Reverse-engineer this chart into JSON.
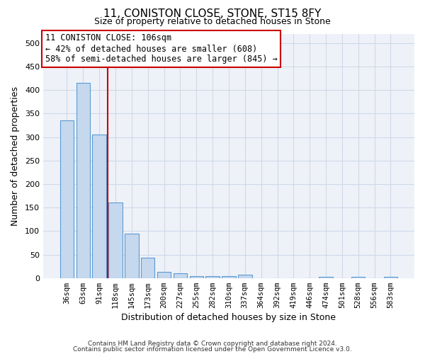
{
  "title": "11, CONISTON CLOSE, STONE, ST15 8FY",
  "subtitle": "Size of property relative to detached houses in Stone",
  "xlabel": "Distribution of detached houses by size in Stone",
  "ylabel": "Number of detached properties",
  "footnote1": "Contains HM Land Registry data © Crown copyright and database right 2024.",
  "footnote2": "Contains public sector information licensed under the Open Government Licence v3.0.",
  "annotation_line1": "11 CONISTON CLOSE: 106sqm",
  "annotation_line2": "← 42% of detached houses are smaller (608)",
  "annotation_line3": "58% of semi-detached houses are larger (845) →",
  "bar_color": "#c5d8ed",
  "bar_edge_color": "#5b9bd5",
  "vline_color": "#cc0000",
  "vline_x": 2.5,
  "annotation_box_color": "#cc0000",
  "categories": [
    "36sqm",
    "63sqm",
    "91sqm",
    "118sqm",
    "145sqm",
    "173sqm",
    "200sqm",
    "227sqm",
    "255sqm",
    "282sqm",
    "310sqm",
    "337sqm",
    "364sqm",
    "392sqm",
    "419sqm",
    "446sqm",
    "474sqm",
    "501sqm",
    "528sqm",
    "556sqm",
    "583sqm"
  ],
  "values": [
    335,
    415,
    305,
    160,
    95,
    43,
    13,
    10,
    4,
    4,
    4,
    7,
    0,
    0,
    0,
    0,
    3,
    0,
    3,
    0,
    3
  ],
  "ylim": [
    0,
    520
  ],
  "yticks": [
    0,
    50,
    100,
    150,
    200,
    250,
    300,
    350,
    400,
    450,
    500
  ],
  "grid_color": "#d0d8e8",
  "bg_color": "#eef2f8",
  "fig_bg": "#ffffff"
}
